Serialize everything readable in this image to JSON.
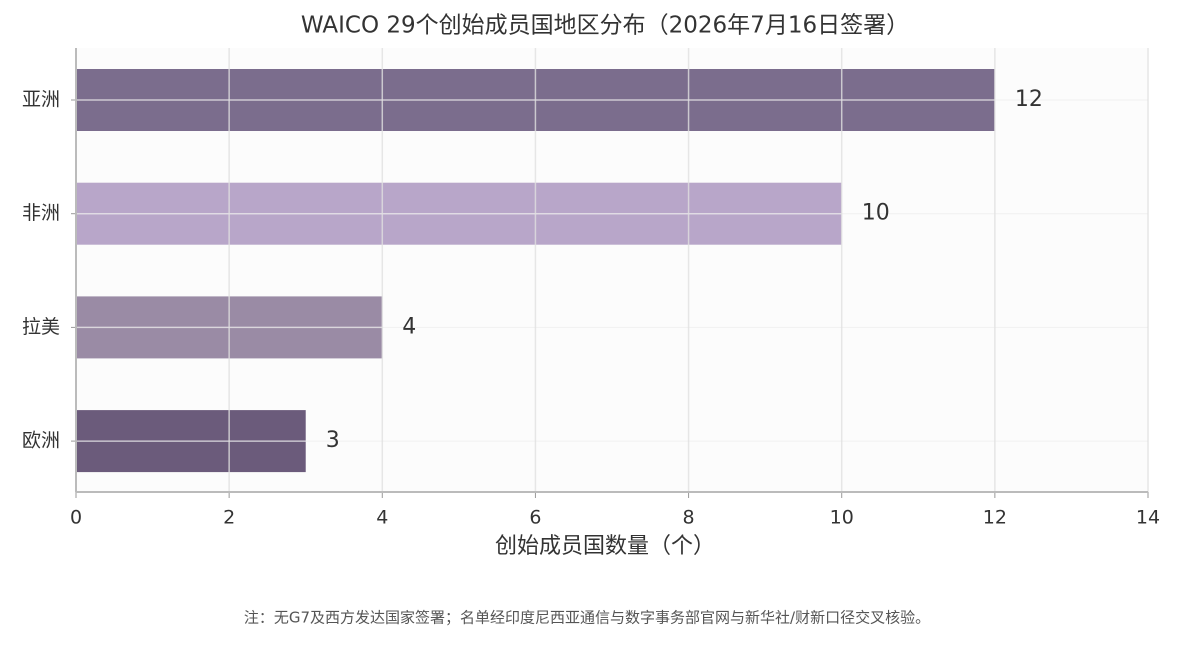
{
  "chart_data": {
    "type": "barh",
    "title": "WAICO 29个创始成员国地区分布（2026年7月16日签署）",
    "xlabel": "创始成员国数量（个）",
    "note": "注：无G7及西方发达国家签署；名单经印度尼西亚通信与数字事务部官网与新华社/财新口径交叉核验。",
    "categories": [
      "亚洲",
      "非洲",
      "拉美",
      "欧洲"
    ],
    "values": [
      12,
      10,
      4,
      3
    ],
    "colors": [
      "#7b6d8d",
      "#b8a6c9",
      "#9a8ba5",
      "#6b5b7b"
    ],
    "xlim": [
      0,
      14
    ],
    "xticks": [
      0,
      2,
      4,
      6,
      8,
      10,
      12,
      14
    ],
    "grid": true
  }
}
